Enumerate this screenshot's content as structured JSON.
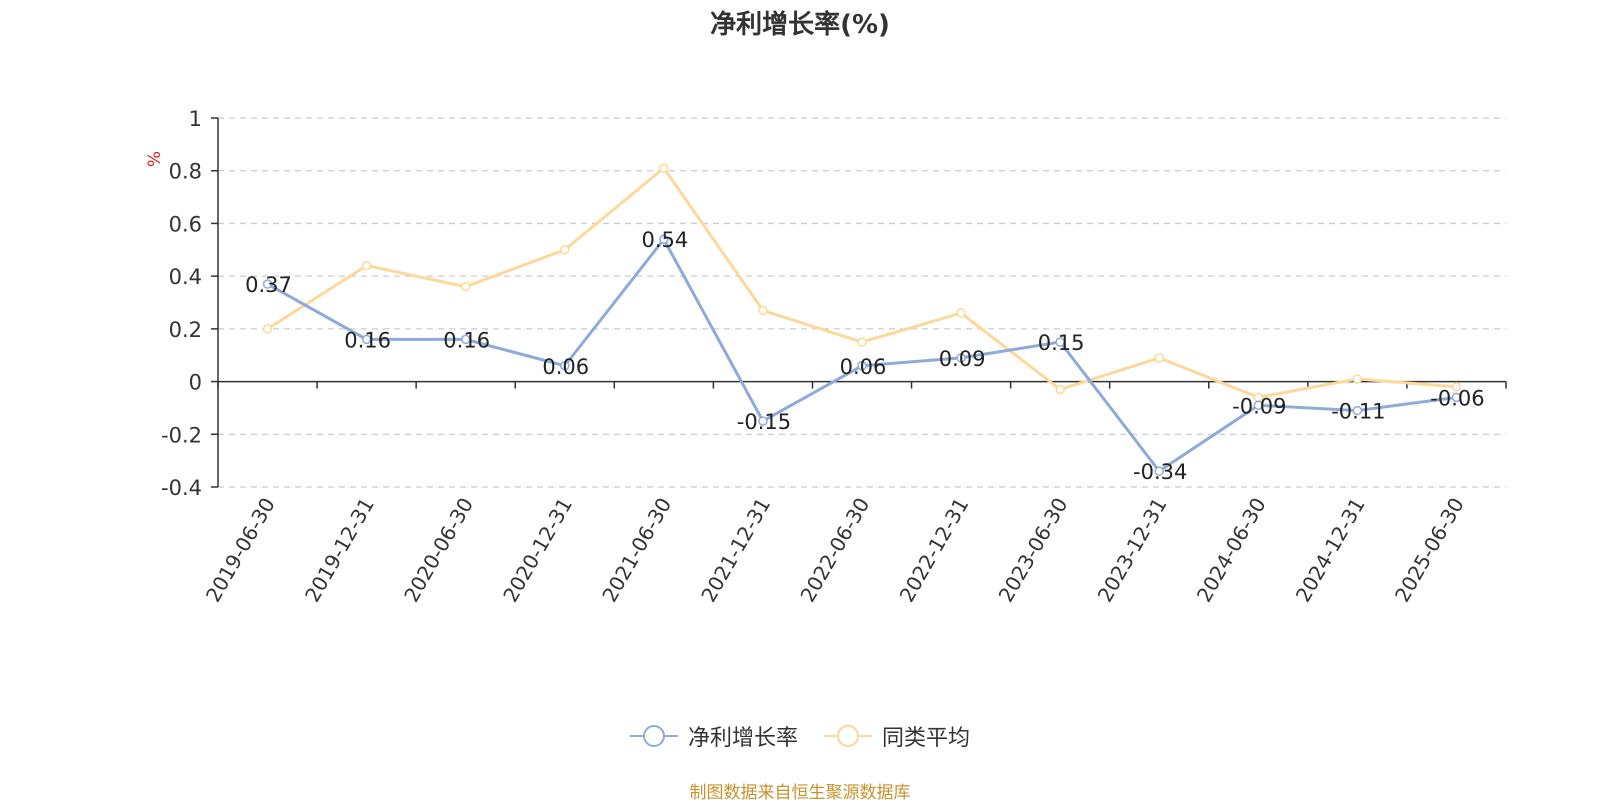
{
  "chart_data": {
    "type": "line",
    "title": "净利增长率(%)",
    "ylabel": "%",
    "categories": [
      "2019-06-30",
      "2019-12-31",
      "2020-06-30",
      "2020-12-31",
      "2021-06-30",
      "2021-12-31",
      "2022-06-30",
      "2022-12-31",
      "2023-06-30",
      "2023-12-31",
      "2024-06-30",
      "2024-12-31",
      "2025-06-30"
    ],
    "ylim": [
      -0.4,
      1
    ],
    "yticks": [
      "1",
      "0.8",
      "0.6",
      "0.4",
      "0.2",
      "0",
      "-0.2",
      "-0.4"
    ],
    "grid": true,
    "legend_position": "bottom",
    "series": [
      {
        "name": "净利增长率",
        "color": "#8eaad8",
        "values": [
          0.37,
          0.16,
          0.16,
          0.06,
          0.54,
          -0.15,
          0.06,
          0.09,
          0.15,
          -0.34,
          -0.09,
          -0.11,
          -0.06
        ],
        "labels": [
          "0.37",
          "0.16",
          "0.16",
          "0.06",
          "0.54",
          "-0.15",
          "0.06",
          "0.09",
          "0.15",
          "-0.34",
          "-0.09",
          "-0.11",
          "-0.06"
        ]
      },
      {
        "name": "同类平均",
        "color": "#fcd99a",
        "values": [
          0.2,
          0.44,
          0.36,
          0.5,
          0.81,
          0.27,
          0.15,
          0.26,
          -0.03,
          0.09,
          -0.06,
          0.01,
          -0.02
        ]
      }
    ]
  },
  "source_text": "制图数据来自恒生聚源数据库"
}
